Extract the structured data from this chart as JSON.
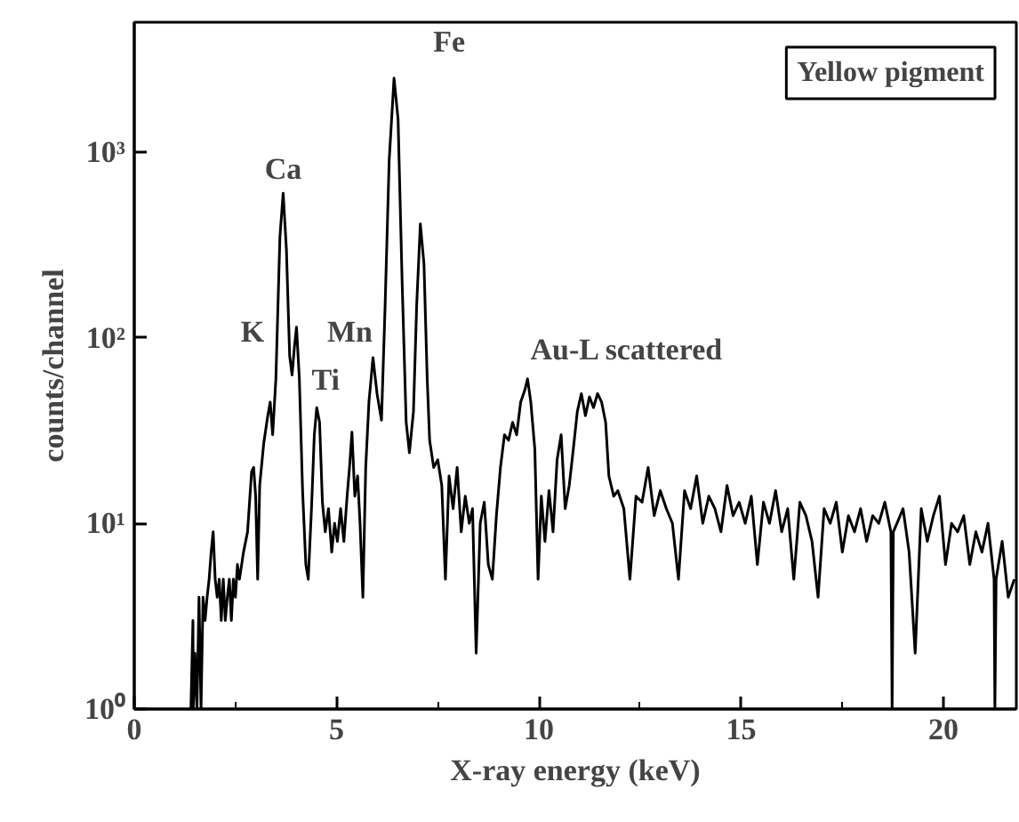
{
  "chart_data": {
    "type": "line",
    "xlabel": "X-ray energy (keV)",
    "ylabel": "counts/channel",
    "log": "y",
    "grid": false,
    "marker": "none",
    "line_style": "solid",
    "xlim": [
      0,
      21.8
    ],
    "ylim": [
      1,
      5000
    ],
    "xticks": [
      0,
      {
        "value": 2.5,
        "label": null
      },
      5,
      {
        "value": 7.5,
        "label": null
      },
      10,
      {
        "value": 12.5,
        "label": null
      },
      15,
      {
        "value": 17.5,
        "label": null
      },
      20
    ],
    "yticks": [
      {
        "value": 1,
        "label": "10⁰"
      },
      {
        "value": 10,
        "label": "10¹"
      },
      {
        "value": 100,
        "label": "10²"
      },
      {
        "value": 1000,
        "label": "10³"
      }
    ],
    "annotations": [
      "Yellow pigment",
      {
        "text": "K",
        "x": 3.36,
        "y": 45
      },
      {
        "text": "Ca",
        "x": 3.68,
        "y": 600
      },
      {
        "text": "Ti",
        "x": 4.51,
        "y": 42
      },
      {
        "text": "Mn",
        "x": 5.9,
        "y": 78
      },
      {
        "text": "Fe",
        "x": 6.42,
        "y": 2500
      },
      {
        "text": "Au-L scattered",
        "x": 9.72,
        "y": 60
      }
    ],
    "series": [
      {
        "color": "#000000",
        "x": [
          1.4,
          1.45,
          1.46,
          1.5,
          1.55,
          1.6,
          1.65,
          1.7,
          1.75,
          1.8,
          1.85,
          1.9,
          1.95,
          2.0,
          2.05,
          2.1,
          2.15,
          2.2,
          2.25,
          2.3,
          2.35,
          2.4,
          2.45,
          2.5,
          2.55,
          2.6,
          2.7,
          2.8,
          2.9,
          2.95,
          3.0,
          3.05,
          3.1,
          3.2,
          3.3,
          3.36,
          3.42,
          3.5,
          3.6,
          3.68,
          3.76,
          3.84,
          3.9,
          3.96,
          4.01,
          4.08,
          4.16,
          4.24,
          4.3,
          4.38,
          4.45,
          4.51,
          4.58,
          4.65,
          4.72,
          4.8,
          4.88,
          4.95,
          5.02,
          5.1,
          5.18,
          5.26,
          5.32,
          5.38,
          5.45,
          5.52,
          5.58,
          5.65,
          5.72,
          5.8,
          5.9,
          6.0,
          6.11,
          6.2,
          6.3,
          6.42,
          6.52,
          6.62,
          6.72,
          6.8,
          6.9,
          6.98,
          7.07,
          7.16,
          7.24,
          7.3,
          7.4,
          7.5,
          7.6,
          7.69,
          7.78,
          7.88,
          7.98,
          8.08,
          8.18,
          8.28,
          8.36,
          8.45,
          8.55,
          8.65,
          8.75,
          8.85,
          8.95,
          9.05,
          9.15,
          9.25,
          9.35,
          9.45,
          9.55,
          9.65,
          9.72,
          9.8,
          9.9,
          9.98,
          10.06,
          10.15,
          10.25,
          10.35,
          10.45,
          10.55,
          10.65,
          10.75,
          10.85,
          10.95,
          11.05,
          11.15,
          11.25,
          11.35,
          11.45,
          11.55,
          11.65,
          11.73,
          11.85,
          11.95,
          12.1,
          12.25,
          12.4,
          12.55,
          12.7,
          12.85,
          13.0,
          13.15,
          13.3,
          13.45,
          13.6,
          13.75,
          13.9,
          14.05,
          14.2,
          14.35,
          14.5,
          14.65,
          14.8,
          14.95,
          15.1,
          15.25,
          15.4,
          15.55,
          15.7,
          15.85,
          16.0,
          16.15,
          16.3,
          16.45,
          16.6,
          16.75,
          16.9,
          17.05,
          17.2,
          17.35,
          17.5,
          17.65,
          17.8,
          17.95,
          18.1,
          18.25,
          18.4,
          18.55,
          18.7,
          18.73,
          18.76,
          18.85,
          19.0,
          19.15,
          19.3,
          19.45,
          19.6,
          19.75,
          19.9,
          20.05,
          20.2,
          20.35,
          20.5,
          20.65,
          20.8,
          20.95,
          21.1,
          21.25,
          21.27,
          21.3,
          21.45,
          21.6,
          21.75
        ],
        "values": [
          1,
          3,
          1,
          2,
          1,
          4,
          1,
          4,
          3,
          4,
          5,
          7,
          9,
          5,
          4,
          5,
          3,
          5,
          3,
          4,
          5,
          3,
          5,
          4,
          6,
          5,
          7,
          9,
          19,
          20,
          14,
          5,
          16,
          27,
          38,
          45,
          30,
          60,
          350,
          600,
          300,
          80,
          63,
          90,
          114,
          60,
          15,
          6,
          5,
          12,
          30,
          42,
          35,
          13,
          9,
          12,
          7,
          10,
          8,
          12,
          8,
          14,
          20,
          31,
          14,
          18,
          10,
          4,
          20,
          45,
          78,
          50,
          36,
          150,
          900,
          2500,
          1500,
          200,
          35,
          24,
          40,
          150,
          410,
          250,
          60,
          28,
          20,
          22,
          16,
          5,
          18,
          12,
          20,
          9,
          14,
          10,
          12,
          2,
          10,
          13,
          6,
          5,
          11,
          20,
          30,
          28,
          35,
          30,
          45,
          52,
          60,
          45,
          25,
          5,
          14,
          8,
          15,
          9,
          22,
          30,
          12,
          16,
          25,
          40,
          50,
          38,
          48,
          42,
          50,
          45,
          35,
          18,
          14,
          15,
          12,
          5,
          14,
          13,
          20,
          11,
          15,
          12,
          10,
          5,
          15,
          12,
          18,
          10,
          14,
          12,
          9,
          16,
          11,
          13,
          10,
          14,
          6,
          13,
          10,
          15,
          9,
          12,
          5,
          13,
          11,
          8,
          4,
          12,
          10,
          13,
          7,
          11,
          9,
          12,
          8,
          11,
          10,
          13,
          9,
          1,
          9,
          10,
          12,
          7,
          2,
          12,
          8,
          11,
          14,
          6,
          10,
          9,
          11,
          6,
          9,
          7,
          10,
          5,
          1,
          5,
          8,
          4,
          5
        ]
      }
    ]
  }
}
